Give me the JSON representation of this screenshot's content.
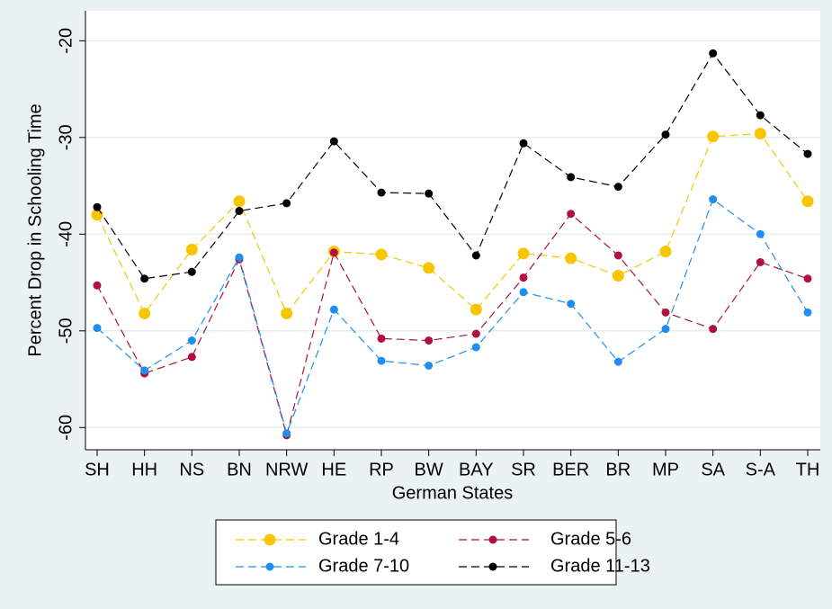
{
  "chart_data": {
    "type": "line",
    "x_label": "German States",
    "y_label": "Percent Drop in Schooling Time",
    "categories": [
      "SH",
      "HH",
      "NS",
      "BN",
      "NRW",
      "HE",
      "RP",
      "BW",
      "BAY",
      "SR",
      "BER",
      "BR",
      "MP",
      "SA",
      "S-A",
      "TH"
    ],
    "series": [
      {
        "name": "Grade 1-4",
        "color": "#f7c600",
        "values": [
          -38,
          -48.2,
          -41.6,
          -36.6,
          -48.2,
          -41.8,
          -42.1,
          -43.5,
          -47.8,
          -42,
          -42.5,
          -44.3,
          -41.8,
          -29.9,
          -29.6,
          -36.6
        ]
      },
      {
        "name": "Grade 5-6",
        "color": "#b0103e",
        "values": [
          -45.3,
          -54.4,
          -52.7,
          -42.6,
          -60.8,
          -41.9,
          -50.8,
          -51,
          -50.3,
          -44.5,
          -37.9,
          -42.2,
          -48.1,
          -49.8,
          -42.9,
          -44.6
        ]
      },
      {
        "name": "Grade 7-10",
        "color": "#1e8ff0",
        "values": [
          -49.7,
          -54.1,
          -51,
          -42.4,
          -60.6,
          -47.8,
          -53.1,
          -53.6,
          -51.7,
          -46,
          -47.2,
          -53.2,
          -49.8,
          -36.4,
          -40,
          -48.1
        ]
      },
      {
        "name": "Grade 11-13",
        "color": "#000000",
        "values": [
          -37.2,
          -44.6,
          -43.9,
          -37.6,
          -36.8,
          -30.4,
          -35.7,
          -35.8,
          -42.2,
          -30.6,
          -34.1,
          -35.1,
          -29.7,
          -21.3,
          -27.7,
          -31.7
        ]
      }
    ],
    "ylim": [
      -62.3,
      -16.9
    ],
    "yticks": [
      -20,
      -30,
      -40,
      -50,
      -60
    ],
    "grid": true,
    "legend": "bottom"
  }
}
